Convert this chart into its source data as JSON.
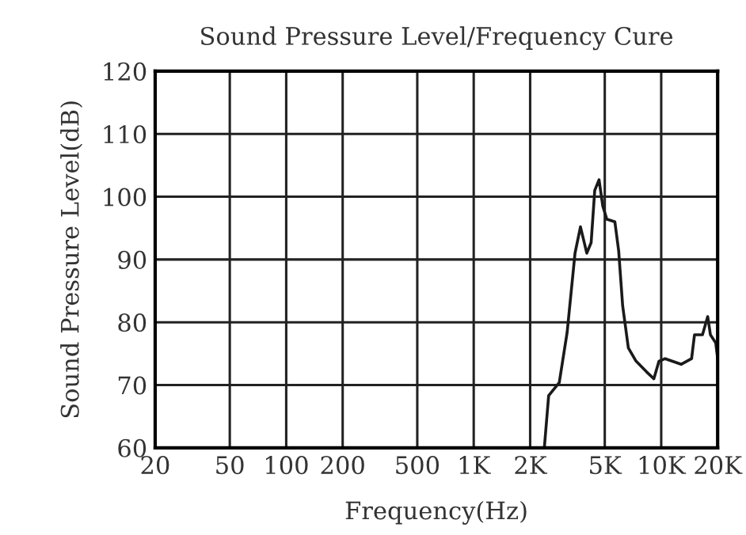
{
  "chart_data": {
    "type": "line",
    "title": "Sound Pressure Level/Frequency Cure",
    "xlabel": "Frequency(Hz)",
    "ylabel": "Sound Pressure Level(dB)",
    "log": "x",
    "grid": true,
    "marker": "none",
    "line_style": "solid",
    "x": [
      20,
      2380,
      2510,
      2860,
      3150,
      3470,
      3710,
      4010,
      4230,
      4420,
      4660,
      4880,
      5130,
      5660,
      5930,
      6230,
      6680,
      7340,
      8350,
      9140,
      9730,
      10500,
      12770,
      14520,
      15050,
      16600,
      17700,
      18300,
      19530,
      20000
    ],
    "series": [
      {
        "color": "#1a1a1a",
        "values": [
          60,
          60,
          68.3,
          70.4,
          78.4,
          91,
          95.2,
          91,
          92.7,
          101,
          102.7,
          98.5,
          96.4,
          96,
          91.4,
          82.6,
          75.9,
          73.8,
          72.1,
          71,
          73.8,
          74.2,
          73.3,
          74.2,
          78,
          78,
          80.9,
          78,
          76.7,
          74.2
        ]
      }
    ],
    "xlim": [
      20,
      20000
    ],
    "ylim": [
      60,
      120
    ],
    "xticks": [
      20,
      50,
      100,
      200,
      500,
      {
        "value": 1000,
        "label": "1K"
      },
      {
        "value": 2000,
        "label": "2K"
      },
      {
        "value": 5000,
        "label": "5K"
      },
      {
        "value": 10000,
        "label": "10K"
      },
      {
        "value": 20000,
        "label": "20K"
      }
    ],
    "yticks": [
      60,
      70,
      80,
      90,
      100,
      110,
      120
    ]
  }
}
